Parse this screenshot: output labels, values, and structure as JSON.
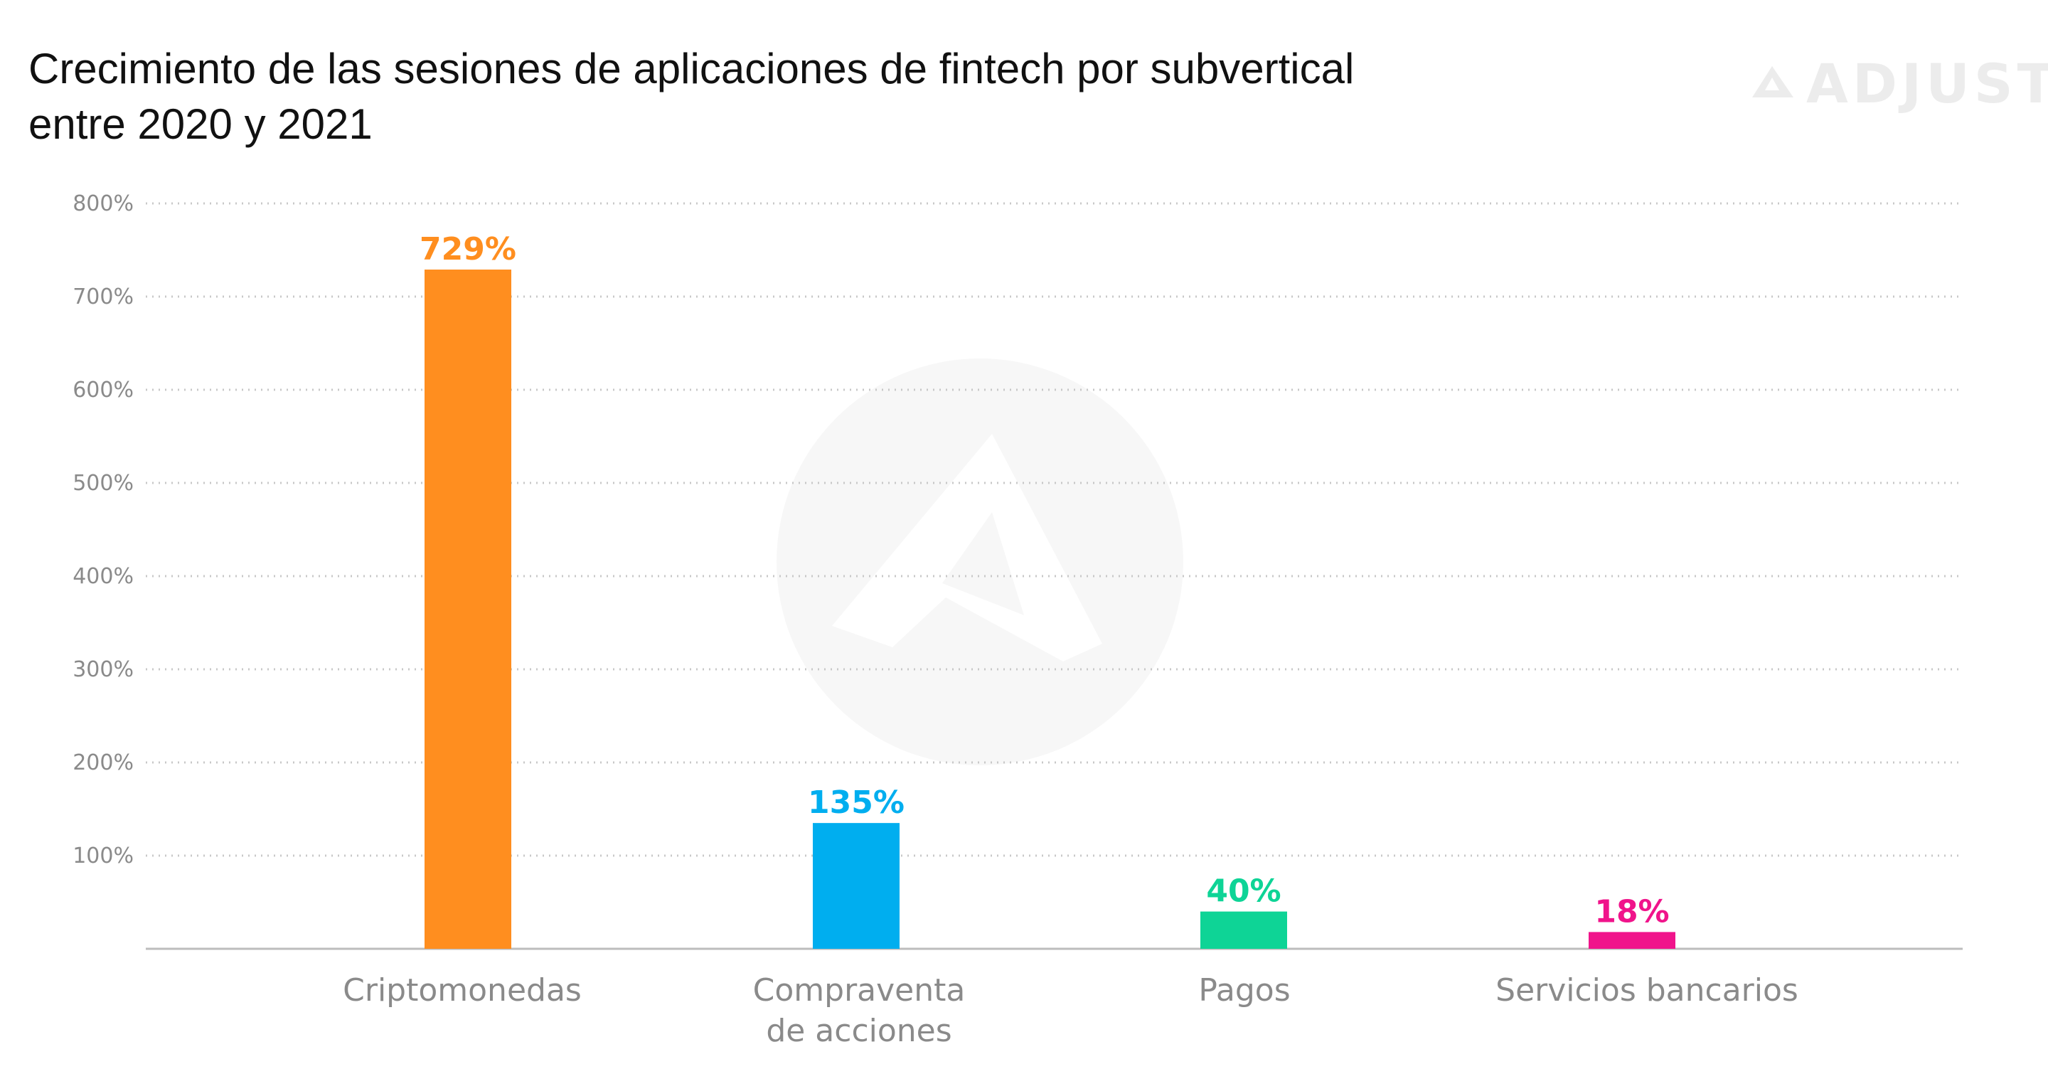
{
  "header": {
    "title_line1": "Crecimiento de las sesiones de aplicaciones de fintech por subvertical",
    "title_line2": "entre 2020 y 2021",
    "logo_text": "ADJUST"
  },
  "chart_data": {
    "type": "bar",
    "title": "Crecimiento de las sesiones de aplicaciones de fintech por subvertical entre 2020 y 2021",
    "categories": [
      "Criptomonedas",
      "Compraventa\nde acciones",
      "Pagos",
      "Servicios bancarios"
    ],
    "values": [
      729,
      135,
      40,
      18
    ],
    "value_labels": [
      "729%",
      "135%",
      "40%",
      "18%"
    ],
    "colors": [
      "#FF8E1F",
      "#00AEEF",
      "#0ED496",
      "#F0148B"
    ],
    "yticks": [
      "800%",
      "700%",
      "600%",
      "500%",
      "400%",
      "300%",
      "200%",
      "100%"
    ],
    "ytick_values": [
      800,
      700,
      600,
      500,
      400,
      300,
      200,
      100
    ],
    "ylim": [
      0,
      800
    ],
    "grid": true,
    "grid_style": "dotted",
    "legend": "none",
    "xlabel": "",
    "ylabel": ""
  }
}
